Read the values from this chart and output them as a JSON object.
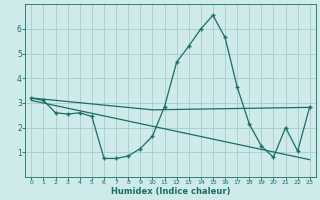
{
  "xlabel": "Humidex (Indice chaleur)",
  "bg_color": "#ceeaea",
  "grid_color": "#a8cccc",
  "line_color": "#1a6e64",
  "xlim": [
    -0.5,
    23.5
  ],
  "ylim": [
    0,
    7
  ],
  "yticks": [
    1,
    2,
    3,
    4,
    5,
    6
  ],
  "xticks": [
    0,
    1,
    2,
    3,
    4,
    5,
    6,
    7,
    8,
    9,
    10,
    11,
    12,
    13,
    14,
    15,
    16,
    17,
    18,
    19,
    20,
    21,
    22,
    23
  ],
  "main_x": [
    0,
    1,
    2,
    3,
    4,
    5,
    6,
    7,
    8,
    9,
    10,
    11,
    12,
    13,
    14,
    15,
    16,
    17,
    18,
    19,
    20,
    21,
    22,
    23
  ],
  "main_y": [
    3.2,
    3.1,
    2.6,
    2.55,
    2.6,
    2.45,
    0.75,
    0.75,
    0.85,
    1.15,
    1.65,
    2.85,
    4.65,
    5.3,
    6.0,
    6.55,
    5.65,
    3.65,
    2.15,
    1.25,
    0.8,
    2.0,
    1.05,
    2.85
  ],
  "trend1_x": [
    0,
    10,
    23
  ],
  "trend1_y": [
    3.2,
    2.72,
    2.82
  ],
  "trend2_x": [
    0,
    23
  ],
  "trend2_y": [
    3.1,
    0.7
  ]
}
